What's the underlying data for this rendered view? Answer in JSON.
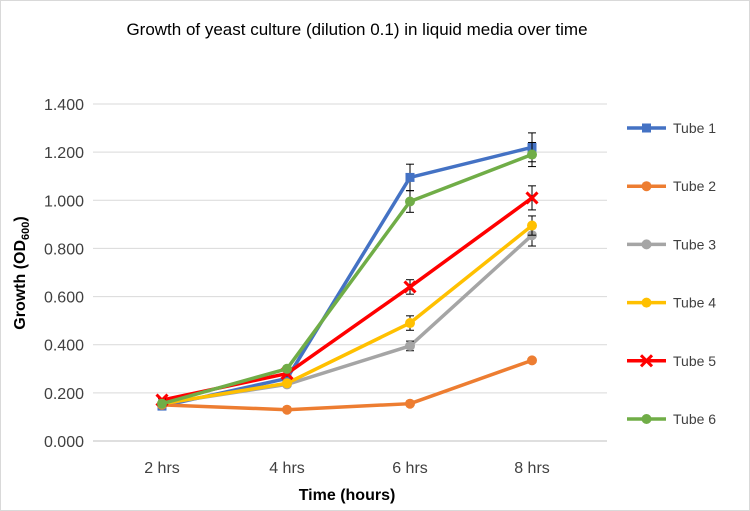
{
  "chart_data": {
    "type": "line",
    "title": "Growth of yeast culture (dilution 0.1) in liquid media over time",
    "xlabel": "Time (hours)",
    "ylabel_main": "Growth (OD",
    "ylabel_sub": "600",
    "ylabel_close": ")",
    "categories": [
      "2 hrs",
      "4 hrs",
      "6 hrs",
      "8 hrs"
    ],
    "ylim": [
      0,
      1.4
    ],
    "yticks": [
      0,
      0.2,
      0.4,
      0.6,
      0.8,
      1.0,
      1.2,
      1.4
    ],
    "ytick_labels": [
      "0.000",
      "0.200",
      "0.400",
      "0.600",
      "0.800",
      "1.000",
      "1.200",
      "1.400"
    ],
    "grid": true,
    "legend_position": "right",
    "series": [
      {
        "name": "Tube 1",
        "color": "#4472C4",
        "marker": "square",
        "values": [
          0.145,
          0.26,
          1.095,
          1.22
        ],
        "errors": [
          0.01,
          0.01,
          0.055,
          0.06
        ]
      },
      {
        "name": "Tube 2",
        "color": "#ED7D31",
        "marker": "circle",
        "values": [
          0.15,
          0.13,
          0.155,
          0.335
        ],
        "errors": [
          0.005,
          0.005,
          0.008,
          0.01
        ]
      },
      {
        "name": "Tube 3",
        "color": "#A5A5A5",
        "marker": "circle",
        "values": [
          0.155,
          0.235,
          0.395,
          0.855
        ],
        "errors": [
          0.005,
          0.01,
          0.02,
          0.045
        ]
      },
      {
        "name": "Tube 4",
        "color": "#FFC000",
        "marker": "circle",
        "values": [
          0.155,
          0.24,
          0.49,
          0.895
        ],
        "errors": [
          0.005,
          0.01,
          0.03,
          0.04
        ]
      },
      {
        "name": "Tube 5",
        "color": "#FF0000",
        "marker": "x",
        "values": [
          0.17,
          0.28,
          0.64,
          1.01
        ],
        "errors": [
          0.005,
          0.01,
          0.03,
          0.05
        ]
      },
      {
        "name": "Tube 6",
        "color": "#70AD47",
        "marker": "circle",
        "values": [
          0.155,
          0.3,
          0.995,
          1.19
        ],
        "errors": [
          0.005,
          0.01,
          0.045,
          0.05
        ]
      }
    ]
  }
}
